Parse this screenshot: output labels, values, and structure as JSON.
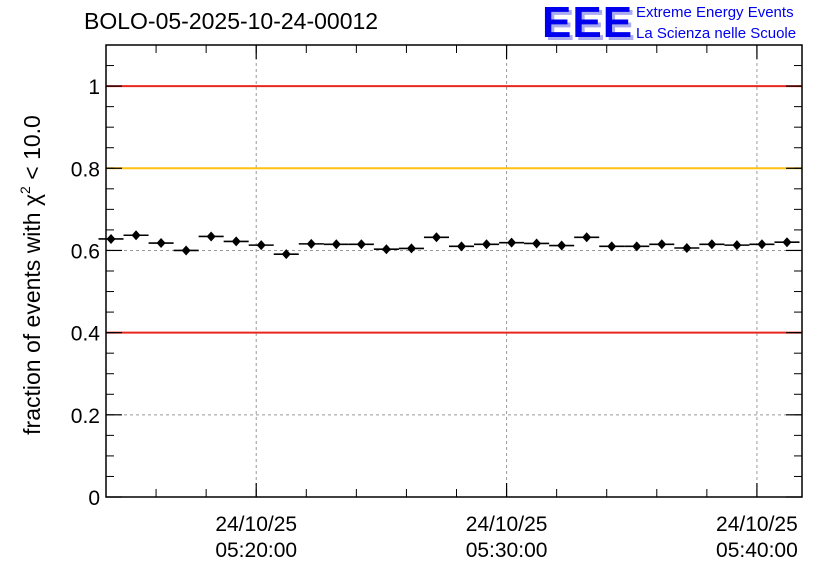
{
  "chart_data": {
    "type": "scatter",
    "title": "BOLO-05-2025-10-24-00012",
    "ylabel_main": "fraction of events with ",
    "ylabel_chi": "χ",
    "ylabel_sup": "2",
    "ylabel_tail": " < 10.0",
    "xlabel": "",
    "ylim": [
      0,
      1.1
    ],
    "x_unit": "minutes",
    "xlim": [
      12,
      39.8
    ],
    "y_ticks": [
      0,
      0.2,
      0.4,
      0.6,
      0.8,
      1
    ],
    "y_tick_labels": [
      "0",
      "0.2",
      "0.4",
      "0.6",
      "0.8",
      "1"
    ],
    "x_ticks": [
      {
        "value": 18,
        "date": "24/10/25",
        "time": "05:20:00"
      },
      {
        "value": 28,
        "date": "24/10/25",
        "time": "05:30:00"
      },
      {
        "value": 38,
        "date": "24/10/25",
        "time": "05:40:00"
      }
    ],
    "x_bin_half_width": 0.5,
    "reference_lines": [
      {
        "y": 1.0,
        "color": "#e8271f"
      },
      {
        "y": 0.8,
        "color": "#ffc20e"
      },
      {
        "y": 0.4,
        "color": "#e8271f"
      }
    ],
    "series": [
      {
        "name": "fraction",
        "color": "#000000",
        "x": [
          12.2,
          13.2,
          14.2,
          15.2,
          16.2,
          17.2,
          18.2,
          19.2,
          20.2,
          21.2,
          22.2,
          23.2,
          24.2,
          25.2,
          26.2,
          27.2,
          28.2,
          29.2,
          30.2,
          31.2,
          32.2,
          33.2,
          34.2,
          35.2,
          36.2,
          37.2,
          38.2,
          39.2
        ],
        "y": [
          0.628,
          0.637,
          0.618,
          0.6,
          0.634,
          0.622,
          0.613,
          0.591,
          0.616,
          0.615,
          0.615,
          0.603,
          0.605,
          0.632,
          0.61,
          0.615,
          0.619,
          0.617,
          0.612,
          0.632,
          0.61,
          0.61,
          0.615,
          0.606,
          0.615,
          0.613,
          0.615,
          0.62
        ],
        "err": [
          0.006,
          0.006,
          0.006,
          0.006,
          0.006,
          0.006,
          0.006,
          0.006,
          0.006,
          0.006,
          0.006,
          0.006,
          0.006,
          0.006,
          0.006,
          0.006,
          0.006,
          0.006,
          0.006,
          0.006,
          0.006,
          0.006,
          0.006,
          0.006,
          0.006,
          0.006,
          0.006,
          0.006
        ]
      }
    ]
  },
  "logo": {
    "mark": "EEE",
    "line1": "Extreme Energy Events",
    "line2": "La Scienza nelle Scuole",
    "color": "#0000ee"
  }
}
